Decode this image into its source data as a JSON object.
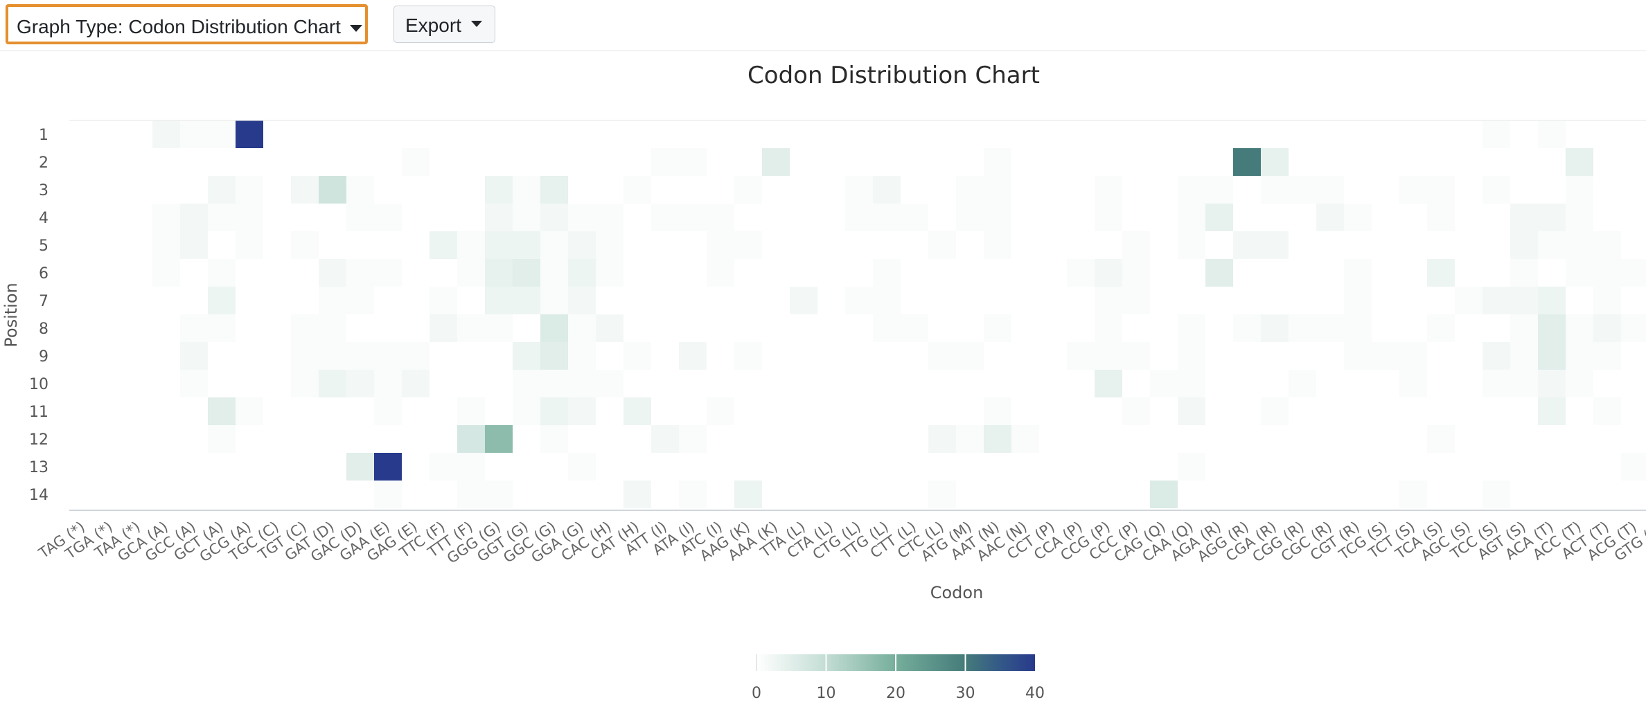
{
  "toolbar": {
    "graph_type_label": "Graph Type: Codon Distribution Chart",
    "export_label": "Export"
  },
  "chart_data": {
    "type": "heatmap",
    "title": "Codon Distribution Chart",
    "xlabel": "Codon",
    "ylabel": "Position",
    "x": [
      "TAG (*)",
      "TGA (*)",
      "TAA (*)",
      "GCA (A)",
      "GCC (A)",
      "GCT (A)",
      "GCG (A)",
      "TGC (C)",
      "TGT (C)",
      "GAT (D)",
      "GAC (D)",
      "GAA (E)",
      "GAG (E)",
      "TTC (F)",
      "TTT (F)",
      "GGG (G)",
      "GGT (G)",
      "GGC (G)",
      "GGA (G)",
      "CAC (H)",
      "CAT (H)",
      "ATT (I)",
      "ATA (I)",
      "ATC (I)",
      "AAG (K)",
      "AAA (K)",
      "TTA (L)",
      "CTA (L)",
      "CTG (L)",
      "TTG (L)",
      "CTT (L)",
      "CTC (L)",
      "ATG (M)",
      "AAT (N)",
      "AAC (N)",
      "CCT (P)",
      "CCA (P)",
      "CCG (P)",
      "CCC (P)",
      "CAG (Q)",
      "CAA (Q)",
      "AGA (R)",
      "AGG (R)",
      "CGA (R)",
      "CGG (R)",
      "CGC (R)",
      "CGT (R)",
      "TCG (S)",
      "TCT (S)",
      "TCA (S)",
      "AGC (S)",
      "TCC (S)",
      "AGT (S)",
      "ACA (T)",
      "ACC (T)",
      "ACT (T)",
      "ACG (T)",
      "GTG (V)"
    ],
    "y": [
      1,
      2,
      3,
      4,
      5,
      6,
      7,
      8,
      9,
      10,
      11,
      12,
      13,
      14
    ],
    "values": [
      [
        0,
        0,
        0,
        2,
        1,
        1,
        40,
        0,
        0,
        0,
        0,
        0,
        0,
        0,
        0,
        0,
        0,
        0,
        0,
        0,
        0,
        0,
        0,
        0,
        0,
        0,
        0,
        0,
        0,
        0,
        0,
        0,
        0,
        0,
        0,
        0,
        0,
        0,
        0,
        0,
        0,
        0,
        0,
        0,
        0,
        0,
        0,
        0,
        0,
        0,
        0,
        1,
        0,
        1,
        0,
        0,
        0,
        0
      ],
      [
        0,
        0,
        0,
        0,
        0,
        0,
        0,
        0,
        0,
        0,
        0,
        0,
        1,
        0,
        0,
        0,
        0,
        0,
        0,
        0,
        0,
        1,
        1,
        0,
        0,
        5,
        0,
        0,
        0,
        0,
        0,
        0,
        0,
        1,
        0,
        0,
        0,
        0,
        0,
        0,
        0,
        0,
        30,
        4,
        0,
        0,
        0,
        0,
        0,
        0,
        0,
        0,
        0,
        0,
        4,
        0,
        0,
        0
      ],
      [
        0,
        0,
        0,
        0,
        0,
        2,
        1,
        0,
        2,
        8,
        1,
        0,
        0,
        0,
        0,
        3,
        1,
        4,
        0,
        0,
        1,
        0,
        0,
        0,
        1,
        0,
        0,
        0,
        1,
        2,
        0,
        0,
        1,
        1,
        0,
        0,
        0,
        1,
        0,
        0,
        1,
        1,
        0,
        1,
        1,
        1,
        0,
        0,
        1,
        1,
        0,
        1,
        0,
        0,
        1,
        0,
        0,
        0
      ],
      [
        0,
        0,
        0,
        1,
        2,
        1,
        1,
        0,
        0,
        0,
        1,
        1,
        0,
        0,
        0,
        2,
        1,
        2,
        1,
        1,
        0,
        1,
        1,
        1,
        0,
        0,
        0,
        0,
        1,
        1,
        1,
        0,
        1,
        1,
        0,
        0,
        0,
        1,
        0,
        0,
        1,
        4,
        0,
        0,
        0,
        2,
        1,
        0,
        0,
        1,
        0,
        0,
        2,
        2,
        1,
        0,
        0,
        1
      ],
      [
        0,
        0,
        0,
        1,
        2,
        0,
        1,
        0,
        1,
        0,
        0,
        0,
        0,
        3,
        1,
        3,
        3,
        1,
        2,
        1,
        0,
        0,
        0,
        1,
        1,
        0,
        0,
        0,
        0,
        0,
        0,
        1,
        0,
        1,
        0,
        0,
        0,
        0,
        1,
        0,
        1,
        0,
        2,
        2,
        0,
        0,
        0,
        0,
        0,
        0,
        0,
        0,
        2,
        1,
        1,
        1,
        0,
        0
      ],
      [
        0,
        0,
        0,
        1,
        0,
        1,
        0,
        0,
        0,
        2,
        1,
        1,
        0,
        0,
        1,
        4,
        5,
        1,
        3,
        1,
        0,
        0,
        0,
        1,
        0,
        0,
        0,
        0,
        0,
        1,
        0,
        0,
        0,
        0,
        0,
        0,
        1,
        2,
        1,
        0,
        0,
        5,
        0,
        0,
        0,
        0,
        1,
        0,
        0,
        3,
        0,
        0,
        1,
        0,
        1,
        1,
        1,
        1
      ],
      [
        0,
        0,
        0,
        0,
        0,
        3,
        0,
        0,
        0,
        1,
        1,
        0,
        0,
        1,
        0,
        3,
        3,
        1,
        2,
        0,
        0,
        0,
        0,
        0,
        0,
        0,
        2,
        0,
        1,
        1,
        0,
        0,
        0,
        0,
        0,
        0,
        0,
        1,
        1,
        0,
        0,
        0,
        0,
        0,
        0,
        0,
        1,
        0,
        0,
        0,
        1,
        2,
        2,
        3,
        0,
        1,
        0,
        0
      ],
      [
        0,
        0,
        0,
        0,
        1,
        1,
        0,
        0,
        1,
        1,
        0,
        0,
        0,
        2,
        1,
        1,
        0,
        6,
        1,
        2,
        0,
        0,
        0,
        0,
        0,
        0,
        0,
        0,
        0,
        1,
        1,
        0,
        0,
        1,
        0,
        0,
        0,
        1,
        0,
        0,
        1,
        0,
        1,
        2,
        1,
        1,
        1,
        0,
        0,
        1,
        0,
        0,
        1,
        5,
        1,
        2,
        1,
        0
      ],
      [
        0,
        0,
        0,
        0,
        2,
        0,
        0,
        0,
        1,
        1,
        1,
        1,
        1,
        0,
        0,
        0,
        3,
        5,
        1,
        0,
        1,
        0,
        2,
        0,
        1,
        0,
        0,
        0,
        0,
        0,
        0,
        1,
        1,
        0,
        0,
        0,
        1,
        1,
        1,
        0,
        1,
        0,
        0,
        0,
        0,
        0,
        1,
        1,
        1,
        0,
        0,
        2,
        1,
        5,
        1,
        1,
        0,
        2
      ],
      [
        0,
        0,
        0,
        0,
        1,
        0,
        0,
        0,
        1,
        3,
        2,
        1,
        2,
        0,
        0,
        0,
        1,
        1,
        1,
        1,
        0,
        0,
        0,
        0,
        0,
        0,
        0,
        0,
        0,
        0,
        0,
        0,
        0,
        0,
        0,
        0,
        0,
        4,
        0,
        1,
        1,
        0,
        0,
        0,
        1,
        0,
        0,
        0,
        1,
        0,
        0,
        1,
        1,
        2,
        1,
        0,
        0,
        0
      ],
      [
        0,
        0,
        0,
        0,
        0,
        5,
        1,
        0,
        0,
        0,
        0,
        1,
        0,
        0,
        1,
        0,
        1,
        3,
        2,
        0,
        3,
        0,
        0,
        1,
        0,
        0,
        0,
        0,
        0,
        0,
        0,
        0,
        0,
        1,
        0,
        0,
        0,
        0,
        1,
        0,
        2,
        0,
        0,
        1,
        0,
        0,
        0,
        0,
        0,
        0,
        0,
        0,
        0,
        3,
        0,
        1,
        0,
        0
      ],
      [
        0,
        0,
        0,
        0,
        0,
        1,
        0,
        0,
        0,
        0,
        0,
        0,
        0,
        0,
        7,
        17,
        0,
        1,
        0,
        0,
        0,
        2,
        1,
        0,
        0,
        0,
        0,
        0,
        0,
        0,
        0,
        2,
        1,
        4,
        1,
        0,
        0,
        0,
        0,
        0,
        0,
        0,
        0,
        0,
        0,
        0,
        0,
        0,
        0,
        1,
        0,
        0,
        0,
        0,
        0,
        0,
        0,
        0
      ],
      [
        0,
        0,
        0,
        0,
        0,
        0,
        0,
        0,
        0,
        0,
        5,
        40,
        0,
        1,
        1,
        0,
        0,
        0,
        1,
        0,
        0,
        0,
        0,
        0,
        0,
        0,
        0,
        0,
        0,
        0,
        0,
        0,
        0,
        0,
        0,
        0,
        0,
        0,
        0,
        0,
        1,
        0,
        0,
        0,
        0,
        0,
        0,
        0,
        0,
        0,
        0,
        0,
        0,
        0,
        0,
        0,
        1,
        0
      ],
      [
        0,
        0,
        0,
        0,
        0,
        0,
        0,
        0,
        0,
        0,
        0,
        1,
        0,
        0,
        1,
        1,
        0,
        0,
        0,
        0,
        2,
        0,
        1,
        0,
        3,
        0,
        0,
        0,
        0,
        0,
        0,
        1,
        0,
        0,
        0,
        0,
        0,
        0,
        0,
        6,
        0,
        0,
        0,
        0,
        0,
        0,
        0,
        0,
        1,
        0,
        0,
        1,
        0,
        0,
        0,
        0,
        0,
        0
      ]
    ],
    "colorscale": [
      "#ffffff",
      "#c3ddd5",
      "#76ae9b",
      "#457b7a",
      "#345a87",
      "#283a8c"
    ],
    "colorbar": {
      "ticks": [
        0,
        10,
        20,
        30,
        40
      ],
      "range": [
        0,
        40
      ]
    }
  }
}
